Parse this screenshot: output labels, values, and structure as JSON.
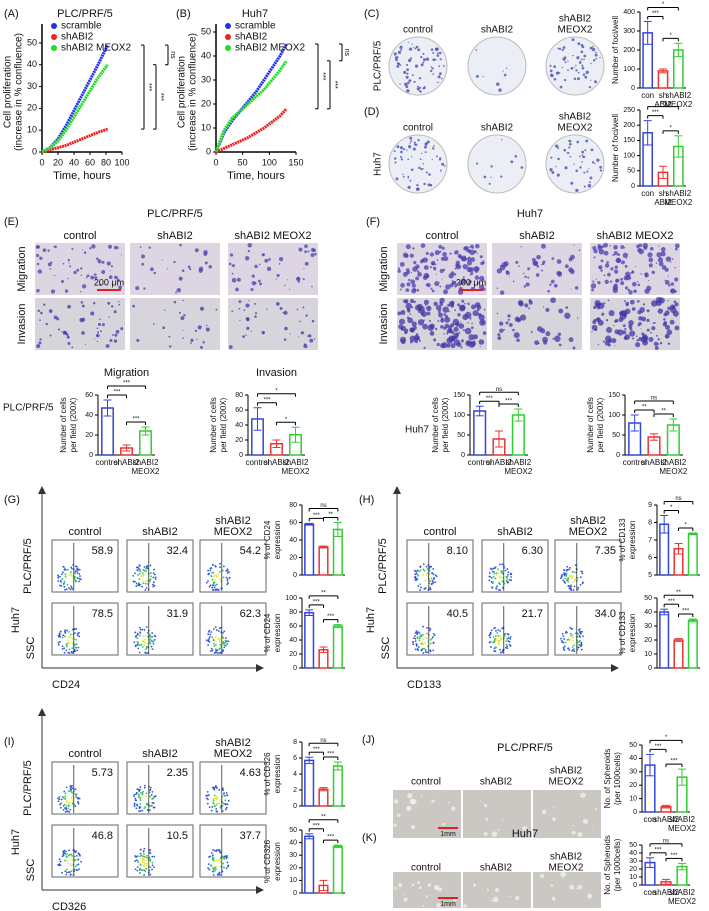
{
  "style": {
    "colors": [
      "#3344dd",
      "#ee3333",
      "#33cc33"
    ]
  },
  "panels": {
    "A": {
      "label": "(A)",
      "title": "PLC/PRF/5",
      "chart": {
        "type": "line",
        "ylabel": [
          "Cell proliferation",
          "(increase in % confluence)"
        ],
        "xlabel": "Time, hours",
        "x": [
          0,
          10,
          20,
          30,
          40,
          50,
          60,
          70,
          82
        ],
        "xlim": [
          0,
          100
        ],
        "xticks": [
          0,
          20,
          40,
          60,
          80,
          100
        ],
        "ylim": [
          0,
          55
        ],
        "yticks": [
          0,
          10,
          20,
          30,
          40,
          50
        ],
        "series": [
          {
            "name": "scramble",
            "color": "#2233ee",
            "values": [
              0,
              2,
              6,
              12,
              19,
              26,
              33,
              40,
              49
            ]
          },
          {
            "name": "shABI2",
            "color": "#ee2222",
            "values": [
              0,
              1,
              2,
              3,
              4.5,
              6,
              7.5,
              9,
              10.5
            ]
          },
          {
            "name": "shABI2 MEOX2",
            "color": "#22dd22",
            "values": [
              0,
              2,
              5,
              10,
              16,
              22,
              28,
              34,
              40
            ]
          }
        ],
        "sig": [
          "***",
          "***",
          "ns"
        ]
      }
    },
    "B": {
      "label": "(B)",
      "title": "Huh7",
      "chart": {
        "type": "line",
        "ylabel": [
          "Cell proliferation",
          "(increase in % confluence)"
        ],
        "xlabel": "Time, hours",
        "x": [
          0,
          15,
          30,
          45,
          60,
          75,
          90,
          105,
          120,
          132
        ],
        "xlim": [
          0,
          150
        ],
        "xticks": [
          0,
          50,
          100,
          150
        ],
        "ylim": [
          0,
          50
        ],
        "yticks": [
          0,
          10,
          20,
          30,
          40,
          50
        ],
        "series": [
          {
            "name": "scramble",
            "color": "#2233ee",
            "values": [
              0,
              8,
              13,
              17,
              21,
              25,
              30,
              35,
              40,
              45
            ]
          },
          {
            "name": "shABI2",
            "color": "#ee2222",
            "values": [
              0,
              1.5,
              3,
              4.5,
              6,
              8,
              10,
              12.5,
              15,
              18
            ]
          },
          {
            "name": "shABI2 MEOX2",
            "color": "#22dd22",
            "values": [
              0,
              9,
              14,
              17,
              20,
              23,
              26,
              30,
              34,
              38
            ]
          }
        ],
        "sig": [
          "***",
          "***",
          "ns"
        ]
      }
    },
    "C": {
      "label": "(C)",
      "row_label": "PLC/PRF/5",
      "columns": [
        [
          "control"
        ],
        [
          "shABI2"
        ],
        [
          "shABI2",
          "MEOX2"
        ]
      ],
      "chart": {
        "type": "bar",
        "ylabel": [
          "Number of foci/well"
        ],
        "categories": [
          [
            "con"
          ],
          [
            "sh",
            "ABI2"
          ],
          [
            "shABI2",
            "MEOX2"
          ]
        ],
        "values": [
          290,
          90,
          200
        ],
        "errors": [
          60,
          10,
          35
        ],
        "ylim": [
          0,
          400
        ],
        "yticks": [
          0,
          100,
          200,
          300,
          400
        ],
        "sig": [
          "*",
          "***",
          "*"
        ]
      }
    },
    "D": {
      "label": "(D)",
      "row_label": "Huh7",
      "columns": [
        [
          "control"
        ],
        [
          "shABI2"
        ],
        [
          "shABI2",
          "MEOX2"
        ]
      ],
      "chart": {
        "type": "bar",
        "ylabel": [
          "Number of foci/well"
        ],
        "categories": [
          [
            "con"
          ],
          [
            "sh",
            "ABI2"
          ],
          [
            "shABI2",
            "MEOX2"
          ]
        ],
        "values": [
          175,
          45,
          130
        ],
        "errors": [
          40,
          20,
          35
        ],
        "ylim": [
          0,
          250
        ],
        "yticks": [
          0,
          50,
          100,
          150,
          200,
          250
        ],
        "sig": [
          "**",
          "***",
          "*"
        ]
      }
    },
    "E": {
      "label": "(E)",
      "title": "PLC/PRF/5",
      "columns": [
        [
          "control"
        ],
        [
          "shABI2"
        ],
        [
          "shABI2 MEOX2"
        ]
      ],
      "rows": [
        "Migration",
        "Invasion"
      ],
      "scale": "200 μm",
      "row_label": "PLC/PRF/5",
      "charts": [
        {
          "type": "bar",
          "title": "Migration",
          "ylabel": [
            "Number of cells",
            "per field (200X)"
          ],
          "categories": [
            [
              "control"
            ],
            [
              "shABI2"
            ],
            [
              "shABI2",
              "MEOX2"
            ]
          ],
          "values": [
            47,
            7,
            24
          ],
          "errors": [
            8,
            3,
            4
          ],
          "ylim": [
            0,
            60
          ],
          "yticks": [
            0,
            20,
            40,
            60
          ],
          "sig": [
            "***",
            "***",
            "***"
          ]
        },
        {
          "type": "bar",
          "title": "Invasion",
          "ylabel": [
            "Number of cells",
            "per field (200X)"
          ],
          "categories": [
            [
              "control"
            ],
            [
              "shABI2"
            ],
            [
              "shABI2",
              "MEOX2"
            ]
          ],
          "values": [
            48,
            15,
            27
          ],
          "errors": [
            15,
            5,
            10
          ],
          "ylim": [
            0,
            80
          ],
          "yticks": [
            0,
            20,
            40,
            60,
            80
          ],
          "sig": [
            "*",
            "***",
            "*"
          ]
        }
      ]
    },
    "F": {
      "label": "(F)",
      "title": "Huh7",
      "columns": [
        [
          "control"
        ],
        [
          "shABI2"
        ],
        [
          "shABI2 MEOX2"
        ]
      ],
      "rows": [
        "Migration",
        "Invasion"
      ],
      "scale": "200 μm",
      "row_label": "Huh7",
      "charts": [
        {
          "type": "bar",
          "ylabel": [
            "Number of cells",
            "per field (200X)"
          ],
          "categories": [
            [
              "control"
            ],
            [
              "shABI2"
            ],
            [
              "shABI2",
              "MEOX2"
            ]
          ],
          "values": [
            110,
            40,
            100
          ],
          "errors": [
            12,
            20,
            15
          ],
          "ylim": [
            0,
            150
          ],
          "yticks": [
            0,
            50,
            100,
            150
          ],
          "sig": [
            "ns",
            "***",
            "***"
          ]
        },
        {
          "type": "bar",
          "ylabel": [
            "Number of cells",
            "per field (200X)"
          ],
          "categories": [
            [
              "control"
            ],
            [
              "shABI2"
            ],
            [
              "shABI2",
              "MEOX2"
            ]
          ],
          "values": [
            80,
            45,
            75
          ],
          "errors": [
            20,
            8,
            15
          ],
          "ylim": [
            0,
            150
          ],
          "yticks": [
            0,
            50,
            100,
            150
          ],
          "sig": [
            "ns",
            "**",
            "**"
          ]
        }
      ]
    },
    "G": {
      "label": "(G)",
      "columns": [
        [
          "control"
        ],
        [
          "shABI2"
        ],
        [
          "shABI2",
          "MEOX2"
        ]
      ],
      "rows": [
        "PLC/PRF/5",
        "Huh7"
      ],
      "yaxis": "SSC",
      "xaxis": "CD24",
      "gates": [
        [
          "58.9",
          "32.4",
          "54.2"
        ],
        [
          "78.5",
          "31.9",
          "62.3"
        ]
      ],
      "charts": [
        {
          "type": "bar",
          "ylabel": [
            "% of CD24",
            "expression"
          ],
          "values": [
            58,
            32,
            52
          ],
          "errors": [
            1,
            1,
            8
          ],
          "ylim": [
            0,
            80
          ],
          "yticks": [
            0,
            20,
            40,
            60,
            80
          ],
          "sig": [
            "ns",
            "***",
            "**"
          ]
        },
        {
          "type": "bar",
          "ylabel": [
            "% of CD24",
            "expression"
          ],
          "values": [
            79,
            26,
            60
          ],
          "errors": [
            4,
            4,
            2
          ],
          "ylim": [
            0,
            100
          ],
          "yticks": [
            0,
            20,
            40,
            60,
            80,
            100
          ],
          "sig": [
            "**",
            "***",
            "***"
          ]
        }
      ]
    },
    "H": {
      "label": "(H)",
      "columns": [
        [
          "control"
        ],
        [
          "shABI2"
        ],
        [
          "shABI2",
          "MEOX2"
        ]
      ],
      "rows": [
        "PLC/PRF/5",
        "Huh7"
      ],
      "yaxis": "SSC",
      "xaxis": "CD133",
      "gates": [
        [
          "8.10",
          "6.30",
          "7.35"
        ],
        [
          "40.5",
          "21.7",
          "34.0"
        ]
      ],
      "charts": [
        {
          "type": "bar",
          "ylabel": [
            "% of CD133",
            "expression"
          ],
          "values": [
            7.9,
            6.5,
            7.35
          ],
          "errors": [
            0.5,
            0.3,
            0.05
          ],
          "ylim": [
            5,
            9
          ],
          "yticks": [
            5,
            6,
            7,
            8,
            9
          ],
          "sig": [
            "ns",
            "*",
            "*"
          ]
        },
        {
          "type": "bar",
          "ylabel": [
            "% of CD133",
            "expression"
          ],
          "values": [
            40,
            20,
            34
          ],
          "errors": [
            2,
            1,
            1
          ],
          "ylim": [
            0,
            50
          ],
          "yticks": [
            0,
            10,
            20,
            30,
            40,
            50
          ],
          "sig": [
            "**",
            "***",
            "***"
          ]
        }
      ]
    },
    "I": {
      "label": "(I)",
      "columns": [
        [
          "control"
        ],
        [
          "shABI2"
        ],
        [
          "shABI2",
          "MEOX2"
        ]
      ],
      "rows": [
        "PLC/PRF/5",
        "Huh7"
      ],
      "yaxis": "SSC",
      "xaxis": "CD326",
      "gates": [
        [
          "5.73",
          "2.35",
          "4.63"
        ],
        [
          "46.8",
          "10.5",
          "37.7"
        ]
      ],
      "charts": [
        {
          "type": "bar",
          "ylabel": [
            "% of CD326",
            "expression"
          ],
          "values": [
            5.7,
            2.1,
            5.0
          ],
          "errors": [
            0.4,
            0.2,
            0.5
          ],
          "ylim": [
            0,
            8
          ],
          "yticks": [
            0,
            2,
            4,
            6,
            8
          ],
          "sig": [
            "ns",
            "***",
            "***"
          ]
        },
        {
          "type": "bar",
          "ylabel": [
            "% of CD326",
            "expression"
          ],
          "values": [
            45,
            6,
            37
          ],
          "errors": [
            2,
            4,
            1
          ],
          "ylim": [
            0,
            50
          ],
          "yticks": [
            0,
            10,
            20,
            30,
            40,
            50
          ],
          "sig": [
            "**",
            "***",
            "***"
          ]
        }
      ]
    },
    "J": {
      "label": "(J)",
      "title": "PLC/PRF/5",
      "columns": [
        [
          "control"
        ],
        [
          "shABI2"
        ],
        [
          "shABI2",
          "MEOX2"
        ]
      ],
      "scale": "1mm",
      "chart": {
        "type": "bar",
        "ylabel": [
          "No. of Spheroids",
          "(per 1000cells)"
        ],
        "categories": [
          [
            "con"
          ],
          [
            "shABI2"
          ],
          [
            "shABI2",
            "MEOX2"
          ]
        ],
        "values": [
          35,
          4,
          26
        ],
        "errors": [
          8,
          1,
          6
        ],
        "ylim": [
          0,
          50
        ],
        "yticks": [
          0,
          10,
          20,
          30,
          40,
          50
        ],
        "sig": [
          "*",
          "***",
          "***"
        ]
      }
    },
    "K": {
      "label": "(K)",
      "title": "Huh7",
      "columns": [
        [
          "control"
        ],
        [
          "shABI2"
        ],
        [
          "shABI2",
          "MEOX2"
        ]
      ],
      "scale": "1mm",
      "chart": {
        "type": "bar",
        "ylabel": [
          "No. of Spheroids",
          "(per 1000cells)"
        ],
        "categories": [
          [
            "con"
          ],
          [
            "shABI2"
          ],
          [
            "shABI2",
            "MEOX2"
          ]
        ],
        "values": [
          28,
          4,
          23
        ],
        "errors": [
          6,
          3,
          4
        ],
        "ylim": [
          0,
          50
        ],
        "yticks": [
          0,
          10,
          20,
          30,
          40,
          50
        ],
        "sig": [
          "ns",
          "***",
          "***"
        ]
      }
    }
  }
}
